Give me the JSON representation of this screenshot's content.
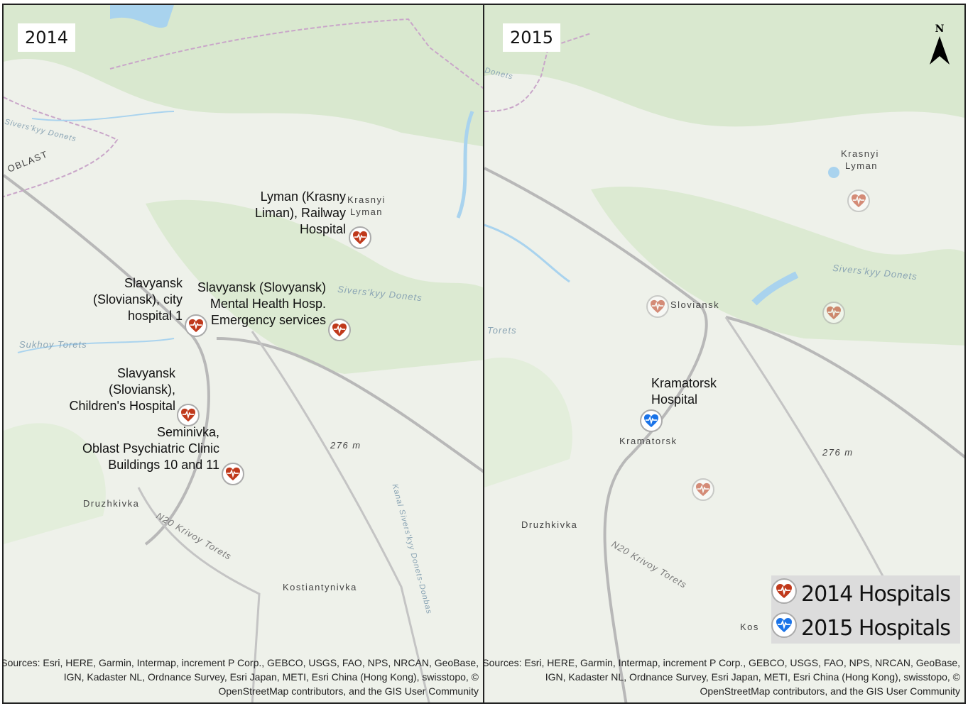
{
  "colors": {
    "hospital_2014": "#c0391b",
    "hospital_2015": "#1a73e8",
    "map_bg": "#eef1ea",
    "forest": "#d5e6cc",
    "road": "#b8b8b8",
    "water": "#a9d3ee"
  },
  "north_label": "N",
  "attribution": [
    "Sources: Esri, HERE, Garmin, Intermap, increment P Corp., GEBCO, USGS, FAO, NPS, NRCAN, GeoBase,",
    "IGN, Kadaster NL, Ordnance Survey, Esri Japan, METI, Esri China (Hong Kong), swisstopo, ©",
    "OpenStreetMap contributors, and the GIS User Community"
  ],
  "panels": [
    {
      "year": "2014",
      "hospitals": [
        {
          "label": [
            "Lyman (Krasny",
            "Liman), Railway",
            "Hospital"
          ],
          "icon": "heart-pulse-icon",
          "year": "2014"
        },
        {
          "label": [
            "Slavyansk",
            "(Sloviansk), city",
            "hospital 1"
          ],
          "icon": "heart-pulse-icon",
          "year": "2014"
        },
        {
          "label": [
            "Slavyansk (Slovyansk)",
            "Mental Health Hosp.",
            "Emergency services"
          ],
          "icon": "heart-pulse-icon",
          "year": "2014"
        },
        {
          "label": [
            "Slavyansk",
            "(Sloviansk),",
            "Children's Hospital"
          ],
          "icon": "heart-pulse-icon",
          "year": "2014"
        },
        {
          "label": [
            "Seminivka,",
            "Oblast Psychiatric Clinic",
            "Buildings 10 and 11"
          ],
          "icon": "heart-pulse-icon",
          "year": "2014"
        }
      ],
      "places": [
        "Krasnyi",
        "Lyman",
        "Druzhkivka",
        "Kostiantynivka",
        "276 m",
        "OBLAST"
      ],
      "water": [
        "Sivers'kyy Donets",
        "Sukhoy Torets",
        "N20 Krivoy Torets",
        "Kanal Sivers'kyy Donets-Donbas",
        "Sivers'kyy Donets"
      ]
    },
    {
      "year": "2015",
      "hospitals": [
        {
          "label": [
            "Kramatorsk",
            "Hospital"
          ],
          "icon": "heart-pulse-icon",
          "year": "2015"
        }
      ],
      "places": [
        "Krasnyi",
        "Lyman",
        "Sloviansk",
        "Kramatorsk",
        "Druzhkivka",
        "276 m",
        "Kos"
      ],
      "water": [
        "Sivers'kyy Donets",
        "Torets",
        "N20 Krivoy Torets",
        "Donets"
      ]
    }
  ],
  "legend": [
    {
      "label": "2014 Hospitals",
      "color": "#c0391b"
    },
    {
      "label": "2015 Hospitals",
      "color": "#1a73e8"
    }
  ]
}
